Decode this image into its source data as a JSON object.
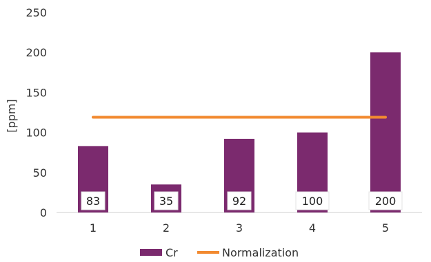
{
  "chart_data": {
    "type": "bar",
    "categories": [
      "1",
      "2",
      "3",
      "4",
      "5"
    ],
    "series": [
      {
        "name": "Cr",
        "type": "bar",
        "values": [
          83,
          35,
          92,
          100,
          200
        ],
        "color": "#7B2A6E"
      },
      {
        "name": "Normalization",
        "type": "line",
        "values": [
          119,
          119,
          119,
          119,
          119
        ],
        "color": "#F28A30"
      }
    ],
    "data_labels": [
      "83",
      "35",
      "92",
      "100",
      "200"
    ],
    "title": "",
    "xlabel": "",
    "ylabel": "[ppm]",
    "ylim": [
      0,
      250
    ],
    "yticks": [
      "0",
      "50",
      "100",
      "150",
      "200",
      "250"
    ],
    "grid": false,
    "legend": {
      "position": "bottom",
      "entries": [
        "Cr",
        "Normalization"
      ]
    }
  }
}
